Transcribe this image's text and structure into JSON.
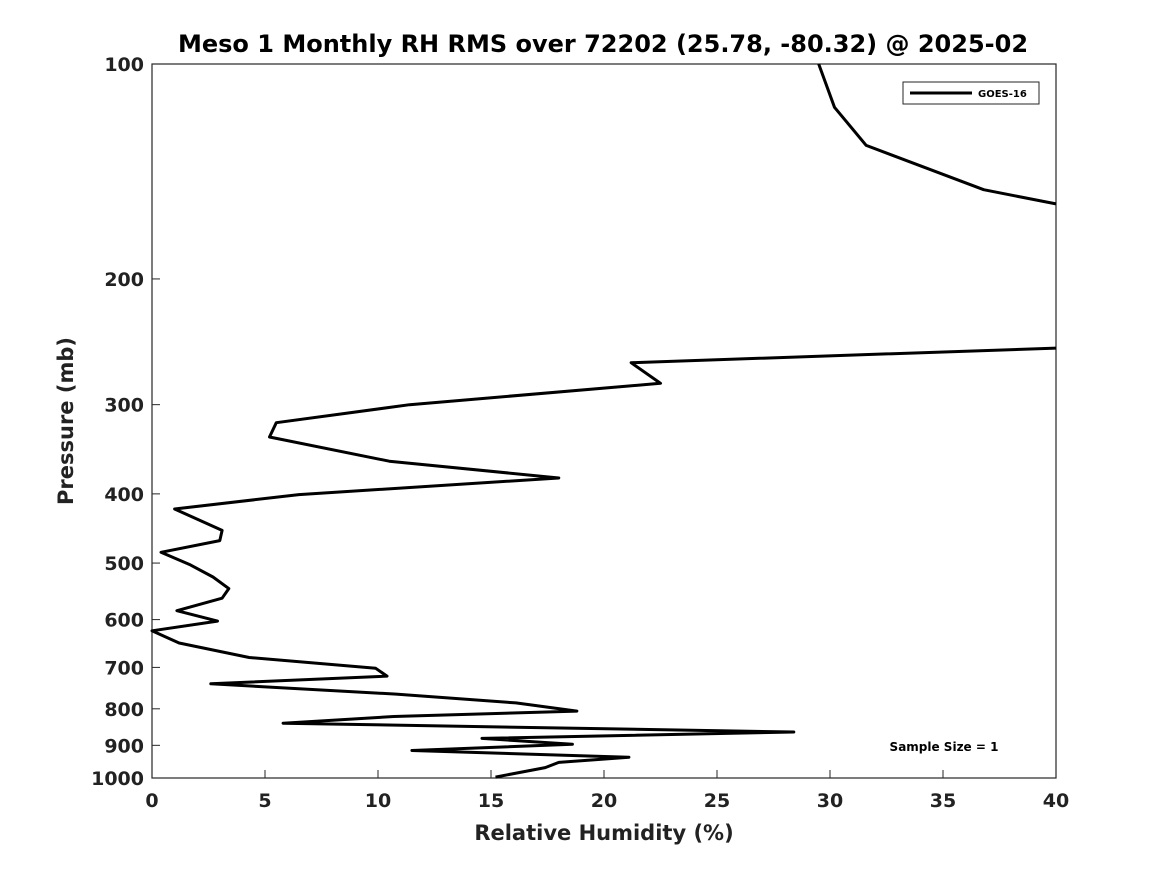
{
  "chart_data": {
    "type": "line",
    "title": "Meso 1 Monthly RH RMS over 72202 (25.78, -80.32) @ 2025-02",
    "xlabel": "Relative Humidity (%)",
    "ylabel": "Pressure (mb)",
    "xlim": [
      0,
      40
    ],
    "ylim": [
      1000,
      100
    ],
    "y_scale": "log",
    "x_ticks": [
      0,
      5,
      10,
      15,
      20,
      25,
      30,
      35,
      40
    ],
    "y_ticks": [
      100,
      200,
      300,
      400,
      500,
      600,
      700,
      800,
      900,
      1000
    ],
    "grid": false,
    "legend": "top-right",
    "annotation": "Sample Size = 1",
    "series": [
      {
        "name": "GOES-16",
        "color": "#000000",
        "segments": [
          [
            [
              29.5,
              100
            ],
            [
              30.2,
              115
            ],
            [
              31.6,
              130
            ],
            [
              36.8,
              150
            ],
            [
              40,
              157
            ]
          ],
          [
            [
              40,
              250
            ],
            [
              21.2,
              262
            ],
            [
              22.5,
              280
            ],
            [
              11.4,
              300
            ],
            [
              5.5,
              318
            ],
            [
              5.2,
              333
            ],
            [
              10.5,
              360
            ],
            [
              18.0,
              380
            ],
            [
              6.5,
              401
            ],
            [
              1.0,
              420
            ],
            [
              3.1,
              450
            ],
            [
              3.0,
              465
            ],
            [
              0.4,
              483
            ],
            [
              1.7,
              503
            ],
            [
              2.7,
              523
            ],
            [
              3.4,
              543
            ],
            [
              3.1,
              560
            ],
            [
              1.1,
              583
            ],
            [
              2.9,
              603
            ],
            [
              0.0,
              622
            ],
            [
              1.2,
              647
            ],
            [
              4.3,
              678
            ],
            [
              9.9,
              702
            ],
            [
              10.4,
              720
            ],
            [
              2.6,
              738
            ],
            [
              10.8,
              763
            ],
            [
              16.1,
              785
            ],
            [
              18.8,
              806
            ],
            [
              10.7,
              820
            ],
            [
              5.8,
              838
            ],
            [
              28.4,
              862
            ],
            [
              14.6,
              880
            ],
            [
              18.6,
              897
            ],
            [
              11.5,
              915
            ],
            [
              21.1,
              935
            ],
            [
              18.0,
              951
            ],
            [
              17.4,
              967
            ],
            [
              15.2,
              997
            ]
          ]
        ]
      }
    ]
  }
}
